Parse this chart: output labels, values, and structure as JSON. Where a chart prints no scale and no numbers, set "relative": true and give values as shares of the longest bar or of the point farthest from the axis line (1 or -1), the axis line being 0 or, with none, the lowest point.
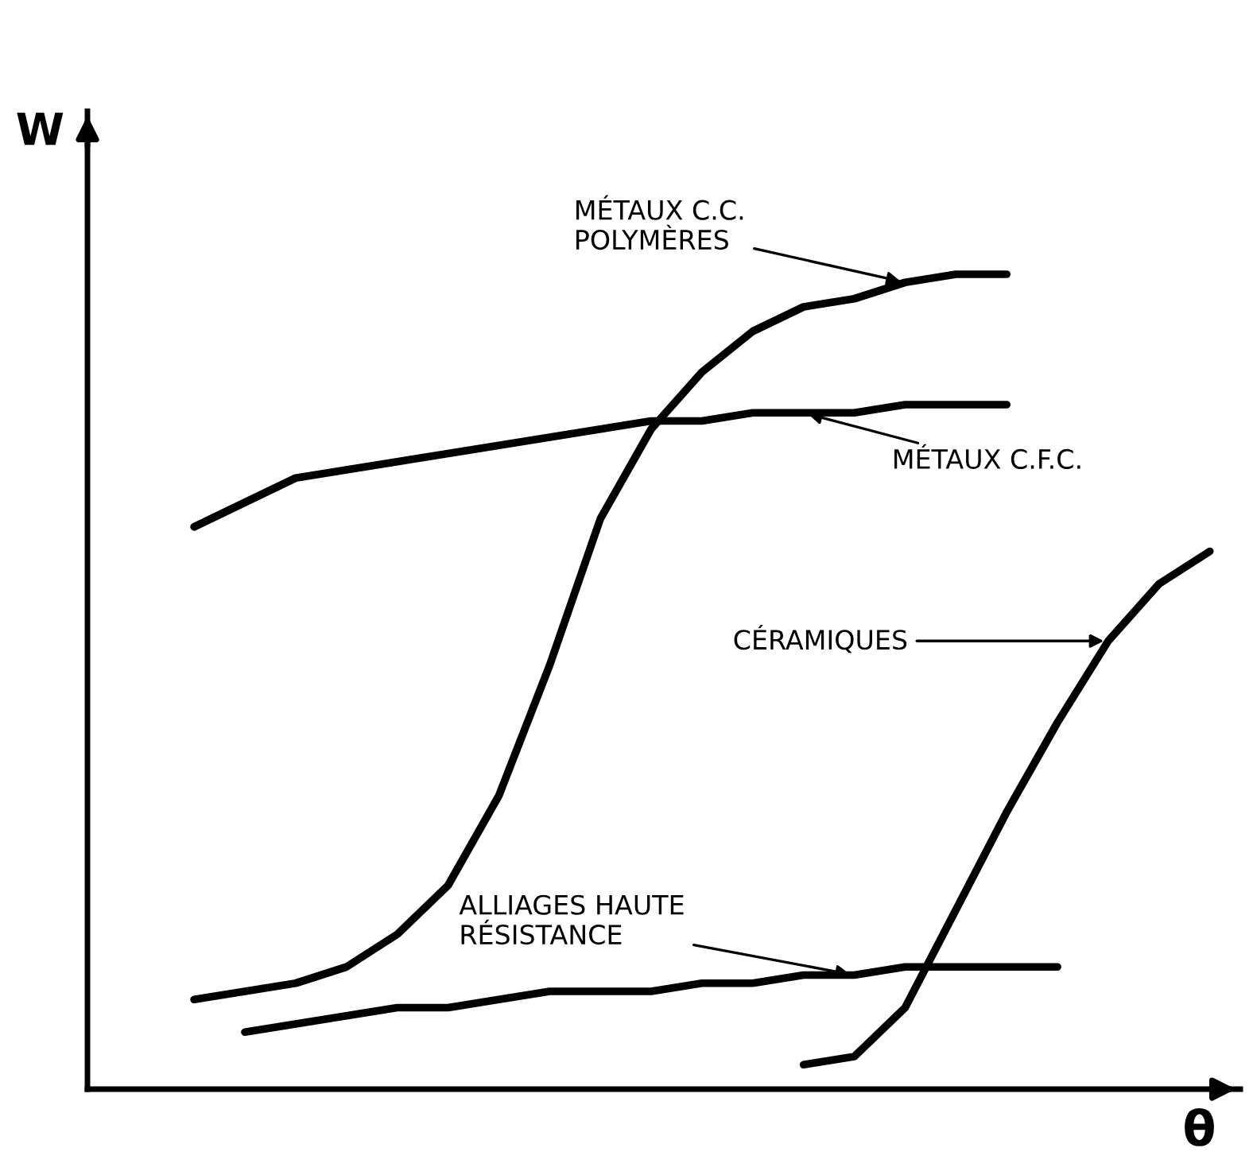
{
  "chart_data": {
    "type": "line",
    "relative": true,
    "xlabel": "θ",
    "ylabel": "W",
    "ylim": [
      0,
      1.2
    ],
    "legend": false,
    "marker": "none",
    "line_style": "solid",
    "categories": [
      null,
      null,
      null,
      null,
      null,
      null,
      null,
      null,
      null,
      null,
      null,
      null,
      null,
      null,
      null,
      null,
      null,
      null,
      null,
      null,
      null,
      null
    ],
    "series": [
      {
        "color": "#000000",
        "values": [
          null,
          0.11,
          0.12,
          0.13,
          0.15,
          0.19,
          0.25,
          0.36,
          0.52,
          0.7,
          0.81,
          0.88,
          0.93,
          0.96,
          0.97,
          0.99,
          1.0,
          1.0,
          null,
          null,
          null,
          null
        ]
      },
      {
        "color": "#000000",
        "values": [
          null,
          0.69,
          0.72,
          0.75,
          0.76,
          0.77,
          0.78,
          0.79,
          0.8,
          0.81,
          0.82,
          0.82,
          0.83,
          0.83,
          0.83,
          0.84,
          0.84,
          0.84,
          null,
          null,
          null,
          null
        ]
      },
      {
        "color": "#000000",
        "values": [
          null,
          null,
          0.07,
          0.08,
          0.09,
          0.1,
          0.1,
          0.11,
          0.12,
          0.12,
          0.12,
          0.13,
          0.13,
          0.14,
          0.14,
          0.15,
          0.15,
          0.15,
          0.15,
          null,
          null,
          null
        ]
      },
      {
        "color": "#000000",
        "values": [
          null,
          null,
          null,
          null,
          null,
          null,
          null,
          null,
          null,
          null,
          null,
          null,
          null,
          0.03,
          0.04,
          0.1,
          0.22,
          0.34,
          0.45,
          0.55,
          0.62,
          0.66
        ]
      }
    ],
    "annotations": [
      "MÉTAUX C.C.\nPOLYMÈRES",
      "MÉTAUX C.F.C.",
      "CÉRAMIQUES",
      "ALLIAGES HAUTE\nRÉSISTANCE"
    ]
  }
}
